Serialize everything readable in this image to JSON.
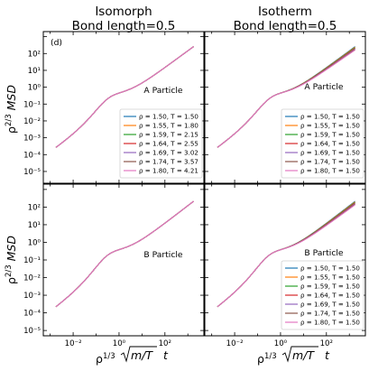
{
  "figure": {
    "columns": [
      {
        "title_line1": "Isomorph",
        "title_line2": "Bond length=0.5"
      },
      {
        "title_line1": "Isotherm",
        "title_line2": "Bond length=0.5"
      }
    ],
    "panel_letter": "(d)",
    "ylabel": {
      "base": "ρ",
      "exp": "2/3",
      "tail": "MSD"
    },
    "xlabel": {
      "base": "ρ",
      "exp": "1/3",
      "rad": "m/T",
      "tail": "t"
    }
  },
  "chart_data": [
    {
      "type": "line",
      "panel": "top-left",
      "label": "A Particle",
      "xscale": "log",
      "yscale": "log",
      "xlim": [
        0.0005,
        5000
      ],
      "ylim": [
        2e-06,
        2000
      ],
      "yticks": [
        "10⁻⁵",
        "10⁻⁴",
        "10⁻³",
        "10⁻²",
        "10⁻¹",
        "10⁰",
        "10¹",
        "10²"
      ],
      "xticks": [],
      "legend_position": "lower-right",
      "series": [
        {
          "name": "ρ = 1.50, T = 1.50",
          "color": "#1f77b4",
          "late_slope_offset": 0
        },
        {
          "name": "ρ = 1.55, T = 1.80",
          "color": "#ff7f0e",
          "late_slope_offset": 0
        },
        {
          "name": "ρ = 1.59, T = 2.15",
          "color": "#2ca02c",
          "late_slope_offset": 0
        },
        {
          "name": "ρ = 1.64, T = 2.55",
          "color": "#d62728",
          "late_slope_offset": 0
        },
        {
          "name": "ρ = 1.69, T = 3.02",
          "color": "#9467bd",
          "late_slope_offset": 0
        },
        {
          "name": "ρ = 1.74, T = 3.57",
          "color": "#8c564b",
          "late_slope_offset": 0
        },
        {
          "name": "ρ = 1.80, T = 4.21",
          "color": "#e377c2",
          "late_slope_offset": 0
        }
      ]
    },
    {
      "type": "line",
      "panel": "top-right",
      "label": "A Particle",
      "xscale": "log",
      "yscale": "log",
      "xlim": [
        0.0005,
        5000
      ],
      "ylim": [
        2e-06,
        2000
      ],
      "yticks": [],
      "xticks": [],
      "legend_position": "lower-right",
      "series": [
        {
          "name": "ρ = 1.50, T = 1.50",
          "color": "#1f77b4",
          "late_slope_offset": 0
        },
        {
          "name": "ρ = 1.55, T = 1.50",
          "color": "#ff7f0e",
          "late_slope_offset": 0.05
        },
        {
          "name": "ρ = 1.59, T = 1.50",
          "color": "#2ca02c",
          "late_slope_offset": 0.1
        },
        {
          "name": "ρ = 1.64, T = 1.50",
          "color": "#d62728",
          "late_slope_offset": 0.15
        },
        {
          "name": "ρ = 1.69, T = 1.50",
          "color": "#9467bd",
          "late_slope_offset": 0.2
        },
        {
          "name": "ρ = 1.74, T = 1.50",
          "color": "#8c564b",
          "late_slope_offset": 0.25
        },
        {
          "name": "ρ = 1.80, T = 1.50",
          "color": "#e377c2",
          "late_slope_offset": 0.3
        }
      ]
    },
    {
      "type": "line",
      "panel": "bottom-left",
      "label": "B Particle",
      "xscale": "log",
      "yscale": "log",
      "xlim": [
        0.0005,
        5000
      ],
      "ylim": [
        5e-06,
        2000
      ],
      "yticks": [
        "10⁻⁵",
        "10⁻⁴",
        "10⁻³",
        "10⁻²",
        "10⁻¹",
        "10⁰",
        "10¹",
        "10²"
      ],
      "xticks": [
        "10⁻²",
        "10⁰",
        "10²"
      ],
      "series": [
        {
          "name": "ρ = 1.50, T = 1.50",
          "color": "#1f77b4",
          "late_slope_offset": 0
        },
        {
          "name": "ρ = 1.55, T = 1.80",
          "color": "#ff7f0e",
          "late_slope_offset": 0
        },
        {
          "name": "ρ = 1.59, T = 2.15",
          "color": "#2ca02c",
          "late_slope_offset": 0
        },
        {
          "name": "ρ = 1.64, T = 2.55",
          "color": "#d62728",
          "late_slope_offset": 0
        },
        {
          "name": "ρ = 1.69, T = 3.02",
          "color": "#9467bd",
          "late_slope_offset": 0
        },
        {
          "name": "ρ = 1.74, T = 3.57",
          "color": "#8c564b",
          "late_slope_offset": 0
        },
        {
          "name": "ρ = 1.80, T = 4.21",
          "color": "#e377c2",
          "late_slope_offset": 0
        }
      ]
    },
    {
      "type": "line",
      "panel": "bottom-right",
      "label": "B Particle",
      "xscale": "log",
      "yscale": "log",
      "xlim": [
        0.0005,
        5000
      ],
      "ylim": [
        5e-06,
        2000
      ],
      "yticks": [],
      "xticks": [
        "10⁻²",
        "10⁰",
        "10²"
      ],
      "legend_position": "lower-right",
      "series": [
        {
          "name": "ρ = 1.50, T = 1.50",
          "color": "#1f77b4",
          "late_slope_offset": 0
        },
        {
          "name": "ρ = 1.55, T = 1.50",
          "color": "#ff7f0e",
          "late_slope_offset": 0.05
        },
        {
          "name": "ρ = 1.59, T = 1.50",
          "color": "#2ca02c",
          "late_slope_offset": 0.1
        },
        {
          "name": "ρ = 1.64, T = 1.50",
          "color": "#d62728",
          "late_slope_offset": 0.15
        },
        {
          "name": "ρ = 1.69, T = 1.50",
          "color": "#9467bd",
          "late_slope_offset": 0.2
        },
        {
          "name": "ρ = 1.74, T = 1.50",
          "color": "#8c564b",
          "late_slope_offset": 0.25
        },
        {
          "name": "ρ = 1.80, T = 1.50",
          "color": "#e377c2",
          "late_slope_offset": 0.3
        }
      ]
    }
  ]
}
